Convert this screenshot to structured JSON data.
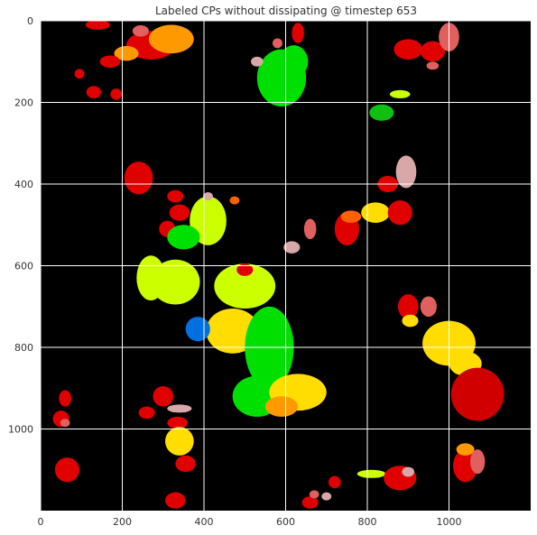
{
  "chart_data": {
    "type": "heatmap",
    "title": "Labeled CPs without dissipating @ timestep 653",
    "xlabel": "",
    "ylabel": "",
    "xlim": [
      0,
      1200
    ],
    "ylim": [
      1200,
      0
    ],
    "x_ticks": [
      0,
      200,
      400,
      600,
      800,
      1000
    ],
    "y_ticks": [
      0,
      200,
      400,
      600,
      800,
      1000
    ],
    "grid": true,
    "grid_color": "#ffffff",
    "background_color": "#000000",
    "palette": {
      "red": "#e00000",
      "dark_red": "#d00000",
      "salmon": "#e06060",
      "pink": "#d8a8a8",
      "orange": "#ff9900",
      "dark_orange": "#ff6000",
      "yellow": "#ffdd00",
      "lime": "#ccff00",
      "green": "#00e000",
      "dark_green": "#10c010",
      "blue": "#0070e0"
    },
    "regions": [
      {
        "label": "top-left-red",
        "color": "red",
        "cx": 270,
        "cy": 60,
        "rx": 60,
        "ry": 35
      },
      {
        "label": "top-left-orange",
        "color": "orange",
        "cx": 320,
        "cy": 45,
        "rx": 55,
        "ry": 35
      },
      {
        "label": "top-left-orange-2",
        "color": "orange",
        "cx": 210,
        "cy": 80,
        "rx": 30,
        "ry": 18
      },
      {
        "label": "top-left-red-2",
        "color": "red",
        "cx": 170,
        "cy": 100,
        "rx": 25,
        "ry": 15
      },
      {
        "label": "top-left-salmon",
        "color": "salmon",
        "cx": 245,
        "cy": 25,
        "rx": 20,
        "ry": 14
      },
      {
        "label": "top-red-small",
        "color": "red",
        "cx": 140,
        "cy": 10,
        "rx": 30,
        "ry": 12
      },
      {
        "label": "top-red-pair-1",
        "color": "red",
        "cx": 95,
        "cy": 130,
        "rx": 12,
        "ry": 12
      },
      {
        "label": "top-red-pair-2",
        "color": "red",
        "cx": 130,
        "cy": 175,
        "rx": 18,
        "ry": 15
      },
      {
        "label": "top-red-3",
        "color": "red",
        "cx": 185,
        "cy": 180,
        "rx": 14,
        "ry": 14
      },
      {
        "label": "top-green",
        "color": "green",
        "cx": 590,
        "cy": 140,
        "rx": 60,
        "ry": 70
      },
      {
        "label": "top-green-2",
        "color": "green",
        "cx": 620,
        "cy": 100,
        "rx": 35,
        "ry": 40
      },
      {
        "label": "top-pink",
        "color": "pink",
        "cx": 530,
        "cy": 100,
        "rx": 15,
        "ry": 12
      },
      {
        "label": "top-red-4",
        "color": "red",
        "cx": 630,
        "cy": 30,
        "rx": 15,
        "ry": 25
      },
      {
        "label": "top-salmon-2",
        "color": "salmon",
        "cx": 580,
        "cy": 55,
        "rx": 12,
        "ry": 12
      },
      {
        "label": "top-right-red",
        "color": "red",
        "cx": 900,
        "cy": 70,
        "rx": 35,
        "ry": 25
      },
      {
        "label": "top-right-red-2",
        "color": "red",
        "cx": 960,
        "cy": 75,
        "rx": 30,
        "ry": 25
      },
      {
        "label": "top-right-salmon",
        "color": "salmon",
        "cx": 1000,
        "cy": 40,
        "rx": 25,
        "ry": 35
      },
      {
        "label": "top-right-salmon-2",
        "color": "salmon",
        "cx": 960,
        "cy": 110,
        "rx": 15,
        "ry": 10
      },
      {
        "label": "lime-1",
        "color": "lime",
        "cx": 880,
        "cy": 180,
        "rx": 25,
        "ry": 10
      },
      {
        "label": "dark-green-1",
        "color": "dark_green",
        "cx": 835,
        "cy": 225,
        "rx": 30,
        "ry": 20
      },
      {
        "label": "left-red-mid",
        "color": "red",
        "cx": 240,
        "cy": 385,
        "rx": 35,
        "ry": 40
      },
      {
        "label": "left-red-mid-2",
        "color": "red",
        "cx": 330,
        "cy": 430,
        "rx": 20,
        "ry": 15
      },
      {
        "label": "left-red-mid-3",
        "color": "red",
        "cx": 340,
        "cy": 470,
        "rx": 25,
        "ry": 20
      },
      {
        "label": "left-red-mid-4",
        "color": "red",
        "cx": 310,
        "cy": 510,
        "rx": 20,
        "ry": 20
      },
      {
        "label": "mid-lime",
        "color": "lime",
        "cx": 410,
        "cy": 490,
        "rx": 45,
        "ry": 60
      },
      {
        "label": "mid-green",
        "color": "green",
        "cx": 350,
        "cy": 530,
        "rx": 40,
        "ry": 30
      },
      {
        "label": "mid-orange-small",
        "color": "dark_orange",
        "cx": 475,
        "cy": 440,
        "rx": 12,
        "ry": 10
      },
      {
        "label": "mid-pink",
        "color": "pink",
        "cx": 410,
        "cy": 430,
        "rx": 12,
        "ry": 10
      },
      {
        "label": "center-pink",
        "color": "pink",
        "cx": 615,
        "cy": 555,
        "rx": 20,
        "ry": 15
      },
      {
        "label": "center-salmon",
        "color": "salmon",
        "cx": 660,
        "cy": 510,
        "rx": 15,
        "ry": 25
      },
      {
        "label": "center-red",
        "color": "red",
        "cx": 750,
        "cy": 510,
        "rx": 30,
        "ry": 40
      },
      {
        "label": "center-orange",
        "color": "dark_orange",
        "cx": 760,
        "cy": 480,
        "rx": 25,
        "ry": 15
      },
      {
        "label": "right-yellow",
        "color": "yellow",
        "cx": 820,
        "cy": 470,
        "rx": 35,
        "ry": 25
      },
      {
        "label": "right-red",
        "color": "red",
        "cx": 880,
        "cy": 470,
        "rx": 30,
        "ry": 30
      },
      {
        "label": "right-red-2",
        "color": "red",
        "cx": 850,
        "cy": 400,
        "rx": 25,
        "ry": 20
      },
      {
        "label": "right-pink",
        "color": "pink",
        "cx": 895,
        "cy": 370,
        "rx": 25,
        "ry": 40
      },
      {
        "label": "left-lime",
        "color": "lime",
        "cx": 330,
        "cy": 640,
        "rx": 60,
        "ry": 55
      },
      {
        "label": "left-lime-2",
        "color": "lime",
        "cx": 270,
        "cy": 630,
        "rx": 35,
        "ry": 55
      },
      {
        "label": "center-lime",
        "color": "lime",
        "cx": 500,
        "cy": 650,
        "rx": 75,
        "ry": 55
      },
      {
        "label": "center-yellow",
        "color": "yellow",
        "cx": 470,
        "cy": 760,
        "rx": 65,
        "ry": 55
      },
      {
        "label": "blue-blob",
        "color": "blue",
        "cx": 385,
        "cy": 755,
        "rx": 30,
        "ry": 30
      },
      {
        "label": "center-green",
        "color": "green",
        "cx": 560,
        "cy": 800,
        "rx": 60,
        "ry": 100
      },
      {
        "label": "center-green-2",
        "color": "green",
        "cx": 530,
        "cy": 920,
        "rx": 60,
        "ry": 50
      },
      {
        "label": "center-yellow-2",
        "color": "yellow",
        "cx": 630,
        "cy": 910,
        "rx": 70,
        "ry": 45
      },
      {
        "label": "center-orange-2",
        "color": "orange",
        "cx": 590,
        "cy": 945,
        "rx": 40,
        "ry": 25
      },
      {
        "label": "center-red-2",
        "color": "red",
        "cx": 500,
        "cy": 610,
        "rx": 20,
        "ry": 15
      },
      {
        "label": "right-yellow-big",
        "color": "yellow",
        "cx": 1000,
        "cy": 790,
        "rx": 65,
        "ry": 55
      },
      {
        "label": "right-yellow-2",
        "color": "yellow",
        "cx": 1040,
        "cy": 840,
        "rx": 40,
        "ry": 30
      },
      {
        "label": "right-dark-red-big",
        "color": "dark_red",
        "cx": 1070,
        "cy": 915,
        "rx": 65,
        "ry": 65
      },
      {
        "label": "right-red-3",
        "color": "red",
        "cx": 900,
        "cy": 700,
        "rx": 25,
        "ry": 30
      },
      {
        "label": "right-salmon-3",
        "color": "salmon",
        "cx": 950,
        "cy": 700,
        "rx": 20,
        "ry": 25
      },
      {
        "label": "right-yellow-small",
        "color": "yellow",
        "cx": 905,
        "cy": 735,
        "rx": 20,
        "ry": 15
      },
      {
        "label": "left-red-lower",
        "color": "red",
        "cx": 300,
        "cy": 920,
        "rx": 25,
        "ry": 25
      },
      {
        "label": "left-red-lower-2",
        "color": "red",
        "cx": 260,
        "cy": 960,
        "rx": 20,
        "ry": 15
      },
      {
        "label": "left-pink-lower",
        "color": "pink",
        "cx": 340,
        "cy": 950,
        "rx": 30,
        "ry": 10
      },
      {
        "label": "left-red-lower-3",
        "color": "red",
        "cx": 335,
        "cy": 985,
        "rx": 25,
        "ry": 15
      },
      {
        "label": "left-yellow-lower",
        "color": "yellow",
        "cx": 340,
        "cy": 1030,
        "rx": 35,
        "ry": 35
      },
      {
        "label": "left-red-lower-4",
        "color": "red",
        "cx": 355,
        "cy": 1085,
        "rx": 25,
        "ry": 20
      },
      {
        "label": "far-left-red",
        "color": "red",
        "cx": 60,
        "cy": 925,
        "rx": 15,
        "ry": 20
      },
      {
        "label": "far-left-red-2",
        "color": "red",
        "cx": 50,
        "cy": 975,
        "rx": 20,
        "ry": 20
      },
      {
        "label": "far-left-salmon",
        "color": "salmon",
        "cx": 60,
        "cy": 985,
        "rx": 12,
        "ry": 10
      },
      {
        "label": "far-left-red-3",
        "color": "red",
        "cx": 65,
        "cy": 1100,
        "rx": 30,
        "ry": 30
      },
      {
        "label": "bottom-red-1",
        "color": "red",
        "cx": 330,
        "cy": 1175,
        "rx": 25,
        "ry": 20
      },
      {
        "label": "bottom-red-2",
        "color": "red",
        "cx": 660,
        "cy": 1180,
        "rx": 20,
        "ry": 15
      },
      {
        "label": "bottom-red-3",
        "color": "red",
        "cx": 720,
        "cy": 1130,
        "rx": 15,
        "ry": 15
      },
      {
        "label": "bottom-pink",
        "color": "pink",
        "cx": 700,
        "cy": 1165,
        "rx": 12,
        "ry": 10
      },
      {
        "label": "bottom-salmon",
        "color": "salmon",
        "cx": 670,
        "cy": 1160,
        "rx": 12,
        "ry": 10
      },
      {
        "label": "bottom-lime",
        "color": "lime",
        "cx": 810,
        "cy": 1110,
        "rx": 35,
        "ry": 10
      },
      {
        "label": "bottom-red-4",
        "color": "red",
        "cx": 880,
        "cy": 1120,
        "rx": 40,
        "ry": 30
      },
      {
        "label": "bottom-pink-2",
        "color": "pink",
        "cx": 900,
        "cy": 1105,
        "rx": 15,
        "ry": 12
      },
      {
        "label": "bottom-red-5",
        "color": "red",
        "cx": 1040,
        "cy": 1090,
        "rx": 30,
        "ry": 40
      },
      {
        "label": "bottom-orange",
        "color": "orange",
        "cx": 1040,
        "cy": 1050,
        "rx": 22,
        "ry": 15
      },
      {
        "label": "bottom-salmon-2",
        "color": "salmon",
        "cx": 1070,
        "cy": 1080,
        "rx": 18,
        "ry": 30
      }
    ]
  }
}
